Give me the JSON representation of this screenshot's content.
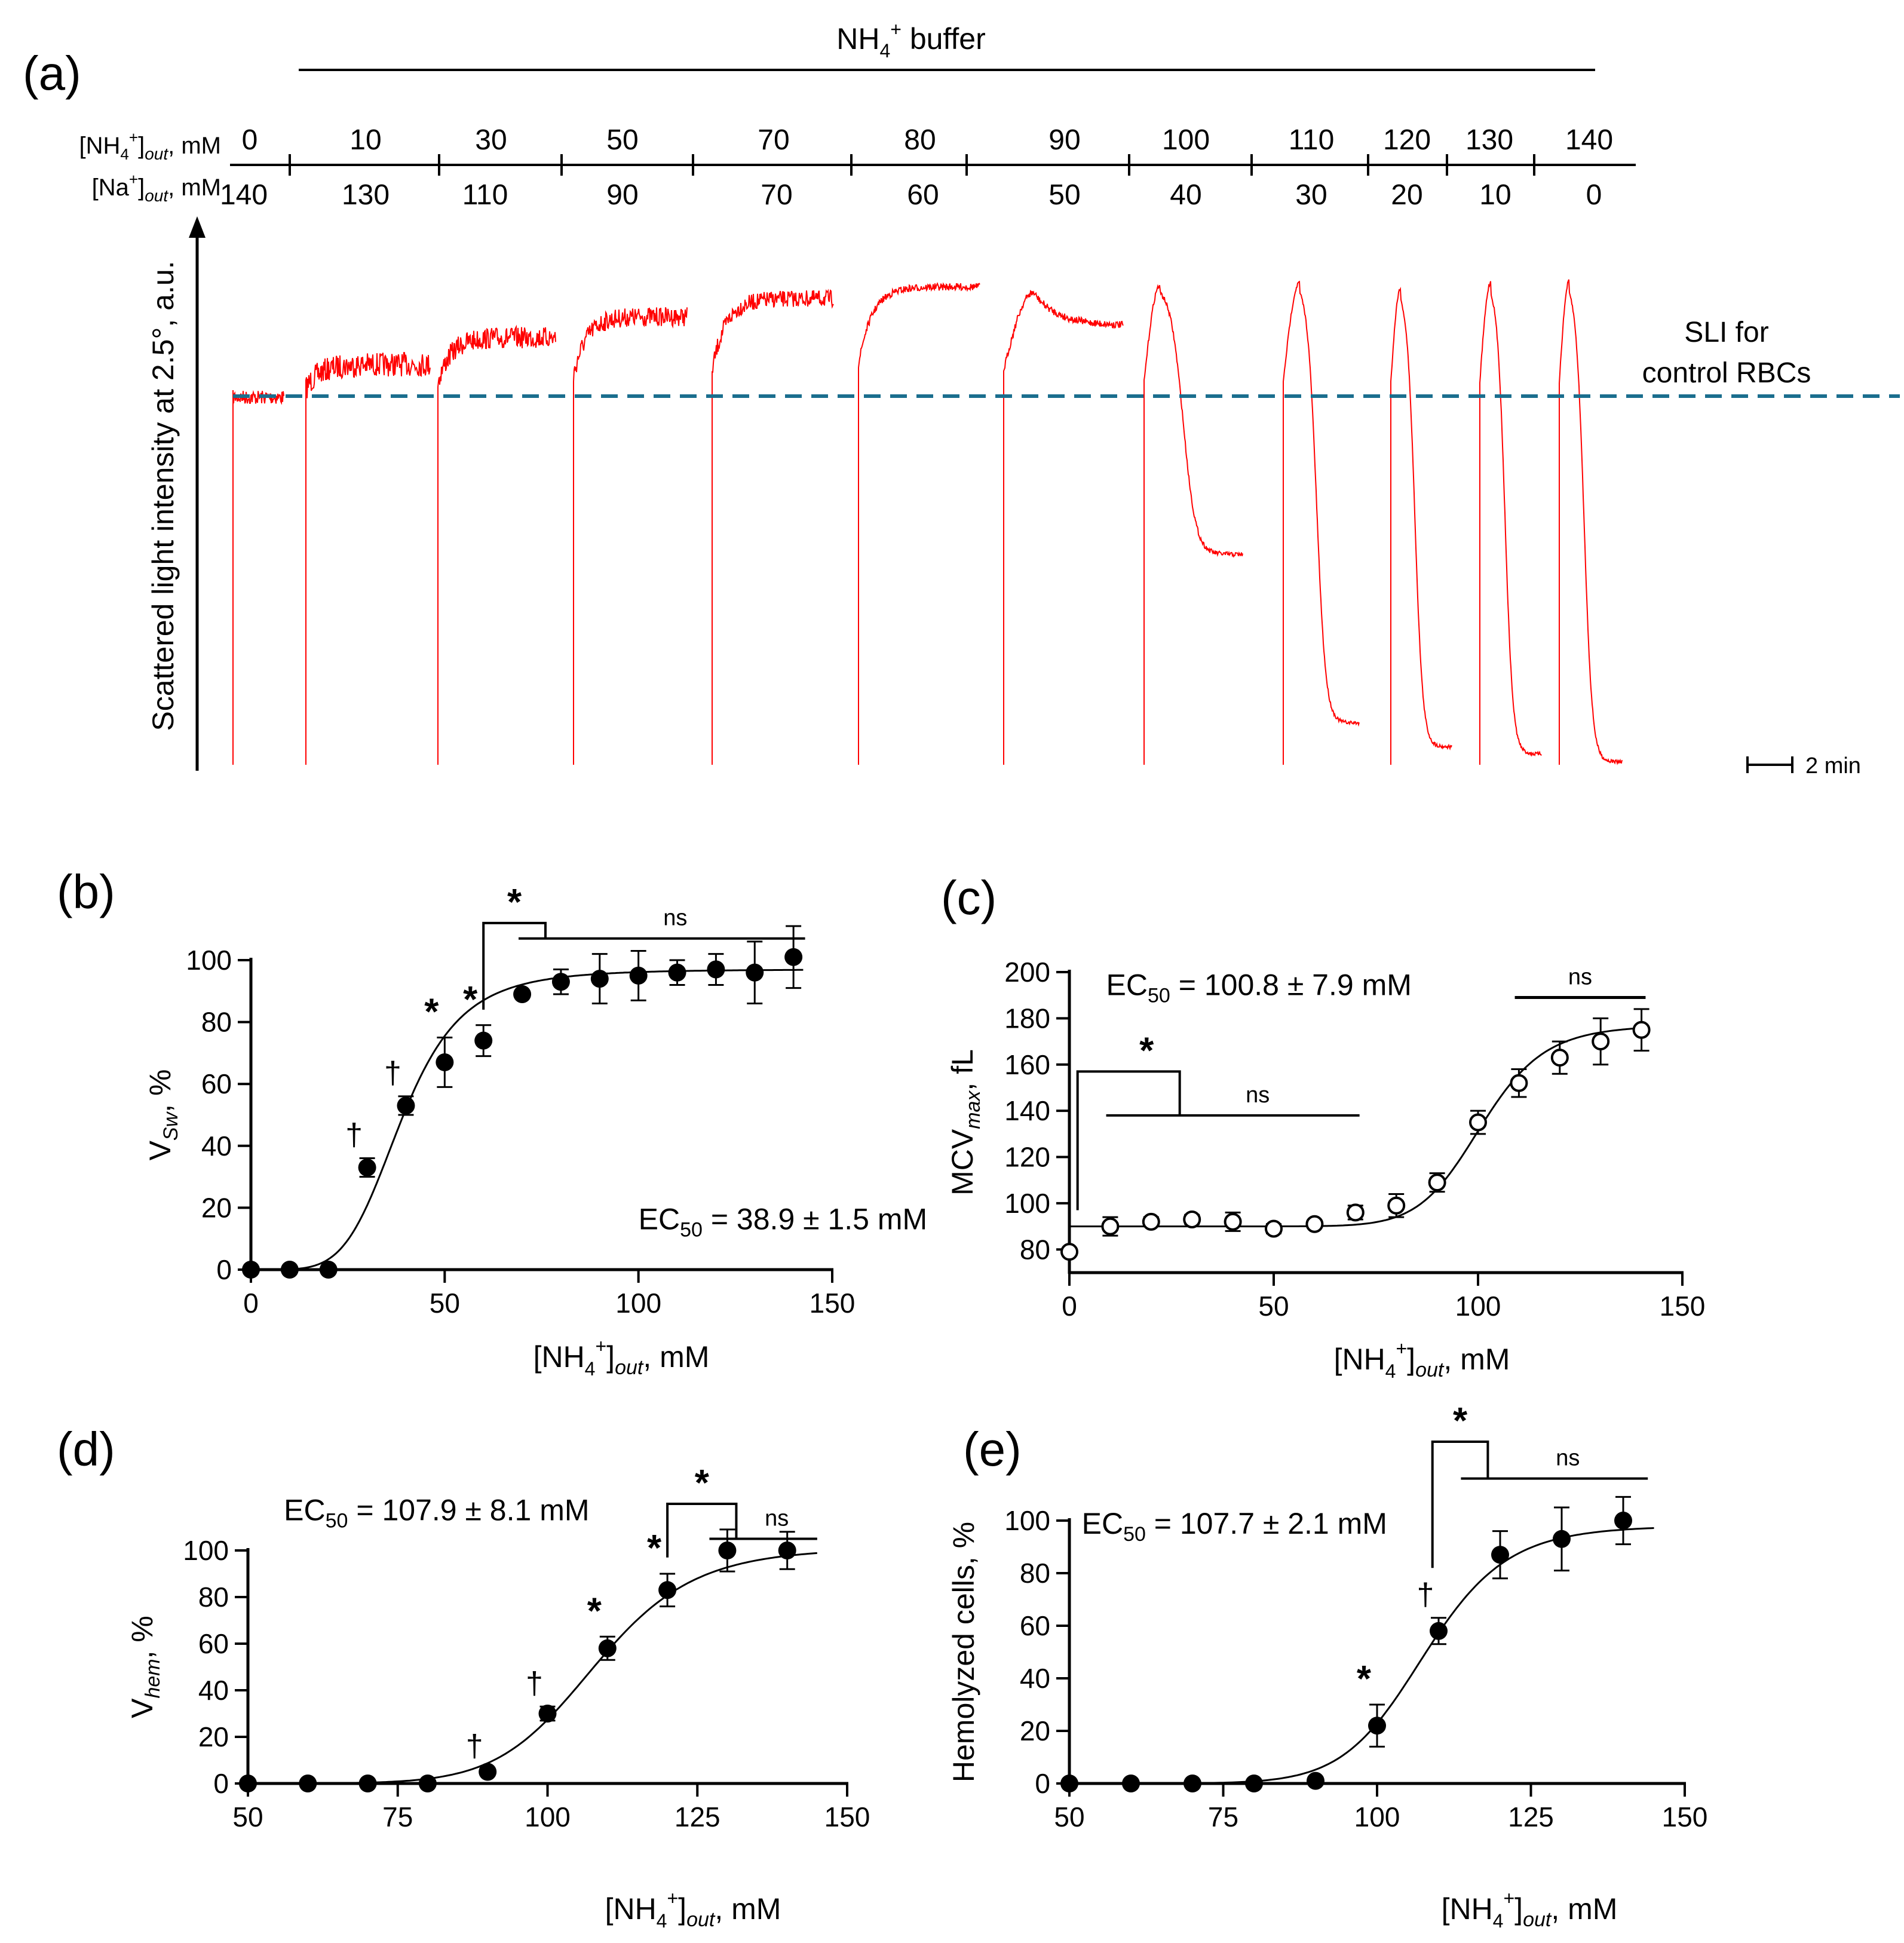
{
  "panel_a": {
    "letter": "(a)",
    "buffer_label": "NH",
    "buffer_sub": "4",
    "buffer_sup": "+",
    "buffer_rest": " buffer",
    "nh4_row_label": "[NH",
    "nh4_row_label_sub": "4",
    "nh4_row_label_sup": "+",
    "nh4_row_label_bracket": "]",
    "nh4_row_label_out": "out",
    "nh4_row_label_unit": ", mM",
    "na_row_label": "[Na",
    "na_row_label_sup": "+",
    "na_row_label_bracket": "]",
    "na_row_label_out": "out",
    "na_row_label_unit": ", mM",
    "nh4_values": [
      "0",
      "10",
      "30",
      "50",
      "70",
      "80",
      "90",
      "100",
      "110",
      "120",
      "130",
      "140"
    ],
    "na_values": [
      "140",
      "130",
      "110",
      "90",
      "70",
      "60",
      "50",
      "40",
      "30",
      "20",
      "10",
      "0"
    ],
    "y_axis_label": "Scattered light intensity at 2.5°, a.u.",
    "sli_label_line1": "SLI for",
    "sli_label_line2": "control RBCs",
    "scale_bar_label": "2 min",
    "trace_color": "#ff0000",
    "dashed_color": "#1a6e8e",
    "sli_text_color": "#1f6fbf"
  },
  "chart_data": [
    {
      "id": "b",
      "type": "scatter",
      "letter": "(b)",
      "ylabel_main": "V",
      "ylabel_sub": "Sw",
      "ylabel_unit": ", %",
      "xlabel_main": "[NH",
      "xlabel_sub": "4",
      "xlabel_sup": "+",
      "xlabel_out": "out",
      "xlabel_unit": ", mM",
      "xlim": [
        0,
        150
      ],
      "ylim": [
        0,
        100
      ],
      "xticks": [
        0,
        50,
        100,
        150
      ],
      "yticks": [
        0,
        20,
        40,
        60,
        80,
        100
      ],
      "x": [
        0,
        10,
        20,
        30,
        40,
        50,
        60,
        70,
        80,
        90,
        100,
        110,
        120,
        130,
        140
      ],
      "y": [
        0,
        0,
        0,
        33,
        53,
        67,
        74,
        89,
        93,
        94,
        95,
        96,
        97,
        96,
        101
      ],
      "err": [
        0,
        0,
        0,
        3,
        3,
        8,
        5,
        1,
        4,
        8,
        8,
        4,
        5,
        10,
        10
      ],
      "marker": "filled",
      "fit": {
        "ec50": 38.9,
        "hill": 5,
        "top": 97
      },
      "annotations": [
        {
          "x": 30,
          "y": 33,
          "err": 3,
          "sym": "†"
        },
        {
          "x": 40,
          "y": 53,
          "err": 3,
          "sym": "†"
        },
        {
          "x": 50,
          "y": 67,
          "err": 8,
          "sym": "*"
        },
        {
          "x": 60,
          "y": 74,
          "err": 5,
          "sym": "*"
        }
      ],
      "bracket": {
        "x1": 60,
        "x2": 76,
        "xe": 143,
        "y_star_top": 112,
        "y_line": 107,
        "y_vert_bottom": 84,
        "star": "*",
        "ns": "ns"
      },
      "ec50_text": "EC",
      "ec50_sub": "50",
      "ec50_value": " = 38.9 ± 1.5 mM",
      "ec50_pos": {
        "x": 100,
        "y": 13
      }
    },
    {
      "id": "c",
      "type": "scatter",
      "letter": "(c)",
      "ylabel_main": "MCV",
      "ylabel_sub": "max",
      "ylabel_unit": ", fL",
      "xlabel_main": "[NH",
      "xlabel_sub": "4",
      "xlabel_sup": "+",
      "xlabel_out": "out",
      "xlabel_unit": ", mM",
      "xlim": [
        0,
        150
      ],
      "ylim": [
        70,
        200
      ],
      "ybase": 70,
      "xticks": [
        0,
        50,
        100,
        150
      ],
      "yticks": [
        80,
        100,
        120,
        140,
        160,
        180,
        200
      ],
      "x": [
        0,
        10,
        20,
        30,
        40,
        50,
        60,
        70,
        80,
        90,
        100,
        110,
        120,
        130,
        140
      ],
      "y": [
        79,
        90,
        92,
        93,
        92,
        89,
        91,
        96,
        99,
        109,
        135,
        152,
        163,
        170,
        175
      ],
      "err": [
        0,
        4,
        2,
        2,
        4,
        2,
        1,
        3,
        5,
        4,
        5,
        6,
        7,
        10,
        9
      ],
      "marker": "open",
      "fit": {
        "ec50": 100.8,
        "hill": 13,
        "bottom": 90,
        "top": 177
      },
      "bracket_c": {
        "x0": 2,
        "x_star_end": 27,
        "x_ns_start": 9,
        "x_ns_end": 71,
        "y_top": 157,
        "y_line": 138,
        "y_bottom": 97,
        "star": "*",
        "ns": "ns"
      },
      "ns_top": {
        "x1": 109,
        "x2": 141,
        "y": 189,
        "label": "ns"
      },
      "ec50_text": "EC",
      "ec50_sub": "50",
      "ec50_value": " = 100.8 ± 7.9 mM",
      "ec50_pos": {
        "x": 9,
        "y": 190
      }
    },
    {
      "id": "d",
      "type": "scatter",
      "letter": "(d)",
      "ylabel_main": "V",
      "ylabel_sub": "hem",
      "ylabel_unit": ", %",
      "xlabel_main": "[NH",
      "xlabel_sub": "4",
      "xlabel_sup": "+",
      "xlabel_out": "out",
      "xlabel_unit": ", mM",
      "xlim": [
        50,
        150
      ],
      "ylim": [
        0,
        100
      ],
      "xticks": [
        50,
        75,
        100,
        125,
        150
      ],
      "yticks": [
        0,
        20,
        40,
        60,
        80,
        100
      ],
      "x": [
        50,
        60,
        70,
        80,
        90,
        100,
        110,
        120,
        130,
        140
      ],
      "y": [
        0,
        0,
        0,
        0,
        5,
        30,
        58,
        83,
        100,
        100
      ],
      "err": [
        0,
        0,
        0,
        0,
        1,
        3,
        5,
        7,
        9,
        8
      ],
      "marker": "filled",
      "fit": {
        "ec50": 107.9,
        "hill": 13,
        "top": 101
      },
      "annotations": [
        {
          "x": 90,
          "y": 5,
          "err": 1,
          "sym": "†"
        },
        {
          "x": 100,
          "y": 30,
          "err": 3,
          "sym": "†"
        },
        {
          "x": 110,
          "y": 58,
          "err": 5,
          "sym": "*"
        },
        {
          "x": 120,
          "y": 83,
          "err": 7,
          "sym": "*"
        }
      ],
      "bracket": {
        "x1": 120,
        "x2": 131.5,
        "xe": 145,
        "y_star_top": 120,
        "y_line": 105,
        "y_vert_bottom": 97,
        "star": "*",
        "ns": "ns"
      },
      "ec50_text": "EC",
      "ec50_sub": "50",
      "ec50_value": " = 107.9 ± 8.1 mM",
      "ec50_pos": {
        "x": 56,
        "y": 113
      }
    },
    {
      "id": "e",
      "type": "scatter",
      "letter": "(e)",
      "ylabel_main": "Hemolyzed cells, %",
      "ylabel_sub": "",
      "ylabel_unit": "",
      "xlabel_main": "[NH",
      "xlabel_sub": "4",
      "xlabel_sup": "+",
      "xlabel_out": "out",
      "xlabel_unit": ", mM",
      "xlim": [
        50,
        150
      ],
      "ylim": [
        0,
        100
      ],
      "xticks": [
        50,
        75,
        100,
        125,
        150
      ],
      "yticks": [
        0,
        20,
        40,
        60,
        80,
        100
      ],
      "x": [
        50,
        60,
        70,
        80,
        90,
        100,
        110,
        120,
        130,
        140
      ],
      "y": [
        0,
        0,
        0,
        0,
        1,
        22,
        58,
        87,
        93,
        100
      ],
      "err": [
        0,
        0,
        0,
        0,
        0,
        8,
        5,
        9,
        12,
        9
      ],
      "marker": "filled",
      "fit": {
        "ec50": 107.7,
        "hill": 16,
        "top": 98
      },
      "annotations": [
        {
          "x": 100,
          "y": 22,
          "err": 8,
          "sym": "*"
        },
        {
          "x": 110,
          "y": 58,
          "err": 5,
          "sym": "†"
        }
      ],
      "bracket": {
        "x1": 109,
        "x2": 118,
        "xe": 144,
        "y_star_top": 130,
        "y_line": 116,
        "y_vert_bottom": 82,
        "star": "*",
        "ns": "ns"
      },
      "ec50_text": "EC",
      "ec50_sub": "50",
      "ec50_value": " = 107.7 ± 2.1 mM",
      "ec50_pos": {
        "x": 52,
        "y": 95
      }
    }
  ]
}
